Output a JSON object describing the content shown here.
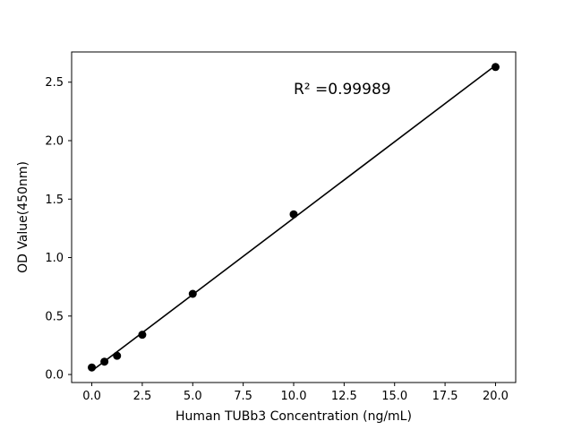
{
  "chart_data": {
    "type": "scatter",
    "title": "",
    "xlabel": "Human TUBb3 Concentration (ng/mL)",
    "ylabel": "OD Value(450nm)",
    "x": [
      0,
      0.625,
      1.25,
      2.5,
      5,
      10,
      20
    ],
    "y": [
      0.06,
      0.11,
      0.16,
      0.34,
      0.69,
      1.37,
      2.63
    ],
    "xlim": [
      -1,
      21
    ],
    "ylim": [
      -0.0685,
      2.7585
    ],
    "xticks": [
      0,
      2.5,
      5,
      7.5,
      10,
      12.5,
      15,
      17.5,
      20
    ],
    "xtick_labels": [
      "0.0",
      "2.5",
      "5.0",
      "7.5",
      "10.0",
      "12.5",
      "15.0",
      "17.5",
      "20.0"
    ],
    "yticks": [
      0,
      0.5,
      1.0,
      1.5,
      2.0,
      2.5
    ],
    "ytick_labels": [
      "0.0",
      "0.5",
      "1.0",
      "1.5",
      "2.0",
      "2.5"
    ],
    "annotation": {
      "text": "R² =0.99989",
      "x": 10,
      "y": 2.4
    },
    "marker_color": "#000000",
    "line_color": "#000000",
    "grid": false,
    "legend": "none",
    "fit": "linear"
  }
}
